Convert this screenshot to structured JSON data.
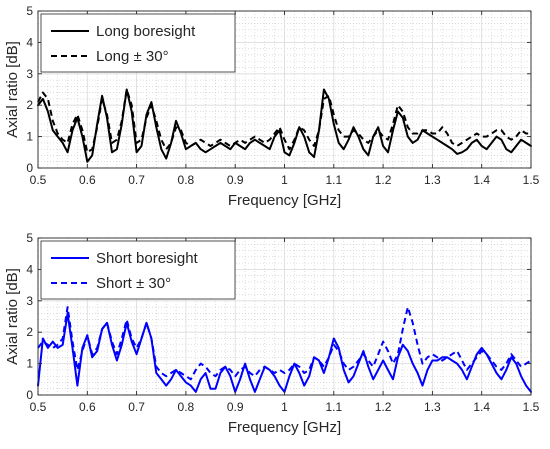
{
  "chart_data": [
    {
      "type": "line",
      "xlabel": "Frequency [GHz]",
      "ylabel": "Axial ratio [dB]",
      "xlim": [
        0.5,
        1.5
      ],
      "ylim": [
        0,
        5
      ],
      "xticks": [
        "0.5",
        "0.6",
        "0.7",
        "0.8",
        "0.9",
        "1",
        "1.1",
        "1.2",
        "1.3",
        "1.4",
        "1.5"
      ],
      "yticks": [
        "0",
        "1",
        "2",
        "3",
        "4",
        "5"
      ],
      "grid": "major and minor (dotted)",
      "legend_position": "top-left",
      "series": [
        {
          "name": "Long boresight",
          "color": "#000000",
          "style": "solid",
          "x": [
            0.5,
            0.51,
            0.52,
            0.53,
            0.54,
            0.55,
            0.56,
            0.57,
            0.58,
            0.59,
            0.6,
            0.61,
            0.62,
            0.63,
            0.64,
            0.65,
            0.66,
            0.67,
            0.68,
            0.69,
            0.7,
            0.71,
            0.72,
            0.73,
            0.74,
            0.75,
            0.76,
            0.77,
            0.78,
            0.79,
            0.8,
            0.81,
            0.82,
            0.83,
            0.84,
            0.85,
            0.86,
            0.87,
            0.88,
            0.89,
            0.9,
            0.91,
            0.92,
            0.93,
            0.94,
            0.95,
            0.96,
            0.97,
            0.98,
            0.99,
            1.0,
            1.01,
            1.02,
            1.03,
            1.04,
            1.05,
            1.06,
            1.07,
            1.08,
            1.09,
            1.1,
            1.11,
            1.12,
            1.13,
            1.14,
            1.15,
            1.16,
            1.17,
            1.18,
            1.19,
            1.2,
            1.21,
            1.22,
            1.23,
            1.24,
            1.25,
            1.26,
            1.27,
            1.28,
            1.29,
            1.3,
            1.31,
            1.32,
            1.33,
            1.34,
            1.35,
            1.36,
            1.37,
            1.38,
            1.39,
            1.4,
            1.41,
            1.42,
            1.43,
            1.44,
            1.45,
            1.46,
            1.47,
            1.48,
            1.49,
            1.5
          ],
          "y": [
            2.0,
            2.2,
            1.8,
            1.2,
            1.0,
            0.8,
            0.5,
            1.2,
            1.6,
            1.0,
            0.2,
            0.4,
            1.4,
            2.3,
            1.6,
            0.5,
            0.6,
            1.4,
            2.5,
            1.8,
            0.5,
            0.7,
            1.7,
            2.1,
            1.3,
            0.6,
            0.3,
            0.8,
            1.5,
            1.1,
            0.6,
            0.7,
            0.8,
            0.6,
            0.5,
            0.6,
            0.7,
            0.8,
            0.7,
            0.6,
            0.8,
            0.7,
            0.6,
            0.8,
            0.9,
            0.8,
            0.7,
            0.6,
            1.0,
            1.2,
            0.5,
            0.4,
            0.8,
            1.3,
            1.0,
            0.5,
            0.35,
            1.2,
            2.5,
            2.2,
            1.4,
            0.8,
            0.6,
            0.9,
            1.3,
            1.0,
            0.6,
            0.4,
            1.0,
            1.3,
            0.7,
            0.5,
            1.2,
            1.8,
            1.6,
            1.0,
            0.8,
            0.9,
            1.2,
            1.1,
            1.0,
            0.9,
            0.8,
            0.7,
            0.6,
            0.45,
            0.5,
            0.6,
            0.8,
            0.9,
            0.7,
            0.6,
            0.8,
            1.0,
            0.9,
            0.6,
            0.5,
            0.7,
            0.9,
            0.8,
            0.7
          ]
        },
        {
          "name": "Long ± 30°",
          "color": "#000000",
          "style": "dashed",
          "x": [
            0.5,
            0.51,
            0.52,
            0.53,
            0.54,
            0.55,
            0.56,
            0.57,
            0.58,
            0.59,
            0.6,
            0.61,
            0.62,
            0.63,
            0.64,
            0.65,
            0.66,
            0.67,
            0.68,
            0.69,
            0.7,
            0.71,
            0.72,
            0.73,
            0.74,
            0.75,
            0.76,
            0.77,
            0.78,
            0.79,
            0.8,
            0.81,
            0.82,
            0.83,
            0.84,
            0.85,
            0.86,
            0.87,
            0.88,
            0.89,
            0.9,
            0.91,
            0.92,
            0.93,
            0.94,
            0.95,
            0.96,
            0.97,
            0.98,
            0.99,
            1.0,
            1.01,
            1.02,
            1.03,
            1.04,
            1.05,
            1.06,
            1.07,
            1.08,
            1.09,
            1.1,
            1.11,
            1.12,
            1.13,
            1.14,
            1.15,
            1.16,
            1.17,
            1.18,
            1.19,
            1.2,
            1.21,
            1.22,
            1.23,
            1.24,
            1.25,
            1.26,
            1.27,
            1.28,
            1.29,
            1.3,
            1.31,
            1.32,
            1.33,
            1.34,
            1.35,
            1.36,
            1.37,
            1.38,
            1.39,
            1.4,
            1.41,
            1.42,
            1.43,
            1.44,
            1.45,
            1.46,
            1.47,
            1.48,
            1.49,
            1.5
          ],
          "y": [
            2.1,
            2.4,
            2.2,
            1.5,
            1.1,
            0.9,
            0.8,
            1.4,
            1.7,
            1.2,
            0.5,
            0.6,
            1.3,
            2.2,
            1.7,
            0.8,
            0.9,
            1.5,
            2.5,
            2.0,
            0.8,
            0.9,
            1.6,
            2.0,
            1.5,
            0.9,
            0.6,
            0.8,
            1.3,
            1.2,
            0.8,
            0.7,
            0.8,
            0.9,
            0.8,
            0.7,
            0.8,
            0.9,
            0.8,
            0.7,
            0.8,
            0.9,
            0.8,
            0.9,
            1.0,
            0.9,
            0.8,
            0.9,
            1.1,
            1.3,
            0.9,
            0.6,
            0.9,
            1.3,
            1.2,
            0.9,
            0.7,
            1.2,
            2.2,
            2.3,
            1.7,
            1.2,
            1.0,
            1.0,
            1.2,
            1.1,
            0.9,
            0.8,
            1.0,
            1.2,
            1.0,
            0.9,
            1.4,
            2.0,
            1.8,
            1.3,
            1.1,
            1.1,
            1.2,
            1.2,
            1.1,
            1.1,
            1.3,
            1.1,
            0.8,
            0.7,
            0.8,
            0.9,
            1.0,
            1.1,
            1.0,
            1.0,
            1.1,
            1.2,
            1.2,
            1.0,
            0.9,
            1.0,
            1.2,
            1.1,
            1.1
          ]
        }
      ]
    },
    {
      "type": "line",
      "xlabel": "Frequency [GHz]",
      "ylabel": "Axial ratio [dB]",
      "xlim": [
        0.5,
        1.5
      ],
      "ylim": [
        0,
        5
      ],
      "xticks": [
        "0.5",
        "0.6",
        "0.7",
        "0.8",
        "0.9",
        "1",
        "1.1",
        "1.2",
        "1.3",
        "1.4",
        "1.5"
      ],
      "yticks": [
        "0",
        "1",
        "2",
        "3",
        "4",
        "5"
      ],
      "grid": "major and minor (dotted)",
      "legend_position": "top-left",
      "series": [
        {
          "name": "Short boresight",
          "color": "#0000ff",
          "style": "solid",
          "x": [
            0.5,
            0.51,
            0.52,
            0.53,
            0.54,
            0.55,
            0.56,
            0.57,
            0.58,
            0.59,
            0.6,
            0.61,
            0.62,
            0.63,
            0.64,
            0.65,
            0.66,
            0.67,
            0.68,
            0.69,
            0.7,
            0.71,
            0.72,
            0.73,
            0.74,
            0.75,
            0.76,
            0.77,
            0.78,
            0.79,
            0.8,
            0.81,
            0.82,
            0.83,
            0.84,
            0.85,
            0.86,
            0.87,
            0.88,
            0.89,
            0.9,
            0.91,
            0.92,
            0.93,
            0.94,
            0.95,
            0.96,
            0.97,
            0.98,
            0.99,
            1.0,
            1.01,
            1.02,
            1.03,
            1.04,
            1.05,
            1.06,
            1.07,
            1.08,
            1.09,
            1.1,
            1.11,
            1.12,
            1.13,
            1.14,
            1.15,
            1.16,
            1.17,
            1.18,
            1.19,
            1.2,
            1.21,
            1.22,
            1.23,
            1.24,
            1.25,
            1.26,
            1.27,
            1.28,
            1.29,
            1.3,
            1.31,
            1.32,
            1.33,
            1.34,
            1.35,
            1.36,
            1.37,
            1.38,
            1.39,
            1.4,
            1.41,
            1.42,
            1.43,
            1.44,
            1.45,
            1.46,
            1.47,
            1.48,
            1.49,
            1.5
          ],
          "y": [
            0.3,
            1.8,
            1.5,
            1.7,
            1.5,
            1.6,
            2.6,
            1.5,
            0.3,
            1.5,
            1.9,
            1.2,
            1.4,
            2.1,
            2.3,
            1.6,
            1.1,
            1.6,
            2.3,
            1.7,
            1.3,
            1.8,
            2.3,
            1.8,
            0.7,
            0.5,
            0.3,
            0.5,
            0.8,
            0.6,
            0.4,
            0.3,
            0.1,
            0.5,
            0.7,
            0.2,
            0.2,
            0.7,
            0.9,
            0.6,
            0.1,
            0.5,
            1.0,
            0.5,
            0.1,
            0.5,
            0.9,
            0.8,
            0.6,
            0.3,
            0.1,
            0.6,
            1.0,
            0.7,
            0.3,
            0.6,
            1.2,
            1.1,
            0.7,
            1.2,
            1.8,
            1.5,
            0.8,
            0.4,
            0.6,
            1.0,
            1.4,
            0.9,
            0.5,
            0.8,
            1.1,
            0.8,
            0.5,
            1.2,
            1.6,
            1.4,
            1.0,
            0.7,
            0.3,
            0.8,
            1.1,
            1.1,
            1.2,
            1.2,
            1.1,
            1.0,
            0.8,
            0.5,
            0.9,
            1.3,
            1.5,
            1.3,
            1.0,
            0.7,
            0.5,
            0.8,
            1.2,
            1.0,
            0.6,
            0.3,
            0.1
          ]
        },
        {
          "name": "Short ± 30°",
          "color": "#0000ff",
          "style": "dashed",
          "x": [
            0.5,
            0.51,
            0.52,
            0.53,
            0.54,
            0.55,
            0.56,
            0.57,
            0.58,
            0.59,
            0.6,
            0.61,
            0.62,
            0.63,
            0.64,
            0.65,
            0.66,
            0.67,
            0.68,
            0.69,
            0.7,
            0.71,
            0.72,
            0.73,
            0.74,
            0.75,
            0.76,
            0.77,
            0.78,
            0.79,
            0.8,
            0.81,
            0.82,
            0.83,
            0.84,
            0.85,
            0.86,
            0.87,
            0.88,
            0.89,
            0.9,
            0.91,
            0.92,
            0.93,
            0.94,
            0.95,
            0.96,
            0.97,
            0.98,
            0.99,
            1.0,
            1.01,
            1.02,
            1.03,
            1.04,
            1.05,
            1.06,
            1.07,
            1.08,
            1.09,
            1.1,
            1.11,
            1.12,
            1.13,
            1.14,
            1.15,
            1.16,
            1.17,
            1.18,
            1.19,
            1.2,
            1.21,
            1.22,
            1.23,
            1.24,
            1.25,
            1.26,
            1.27,
            1.28,
            1.29,
            1.3,
            1.31,
            1.32,
            1.33,
            1.34,
            1.35,
            1.36,
            1.37,
            1.38,
            1.39,
            1.4,
            1.41,
            1.42,
            1.43,
            1.44,
            1.45,
            1.46,
            1.47,
            1.48,
            1.49,
            1.5
          ],
          "y": [
            1.5,
            1.7,
            1.6,
            1.5,
            1.6,
            1.8,
            2.8,
            1.7,
            0.8,
            1.4,
            1.9,
            1.3,
            1.5,
            2.1,
            2.3,
            1.7,
            1.3,
            1.8,
            2.4,
            1.8,
            1.5,
            1.8,
            2.3,
            1.8,
            0.9,
            0.7,
            0.6,
            0.7,
            0.8,
            0.7,
            0.6,
            0.5,
            0.8,
            1.0,
            0.9,
            0.7,
            0.6,
            0.8,
            0.9,
            0.8,
            0.6,
            0.8,
            0.9,
            0.7,
            0.6,
            0.8,
            0.9,
            0.8,
            0.7,
            0.8,
            0.7,
            0.8,
            1.0,
            0.9,
            0.7,
            0.8,
            1.2,
            1.1,
            0.9,
            1.2,
            1.6,
            1.4,
            1.0,
            0.8,
            0.9,
            1.1,
            1.3,
            1.1,
            0.9,
            1.3,
            1.7,
            1.4,
            1.0,
            1.3,
            2.1,
            2.8,
            2.3,
            1.6,
            1.0,
            1.2,
            1.3,
            1.2,
            1.1,
            1.2,
            1.3,
            1.4,
            1.1,
            0.8,
            1.0,
            1.2,
            1.4,
            1.3,
            1.1,
            0.9,
            0.8,
            1.0,
            1.3,
            1.1,
            0.9,
            1.0,
            1.1
          ]
        }
      ]
    }
  ]
}
